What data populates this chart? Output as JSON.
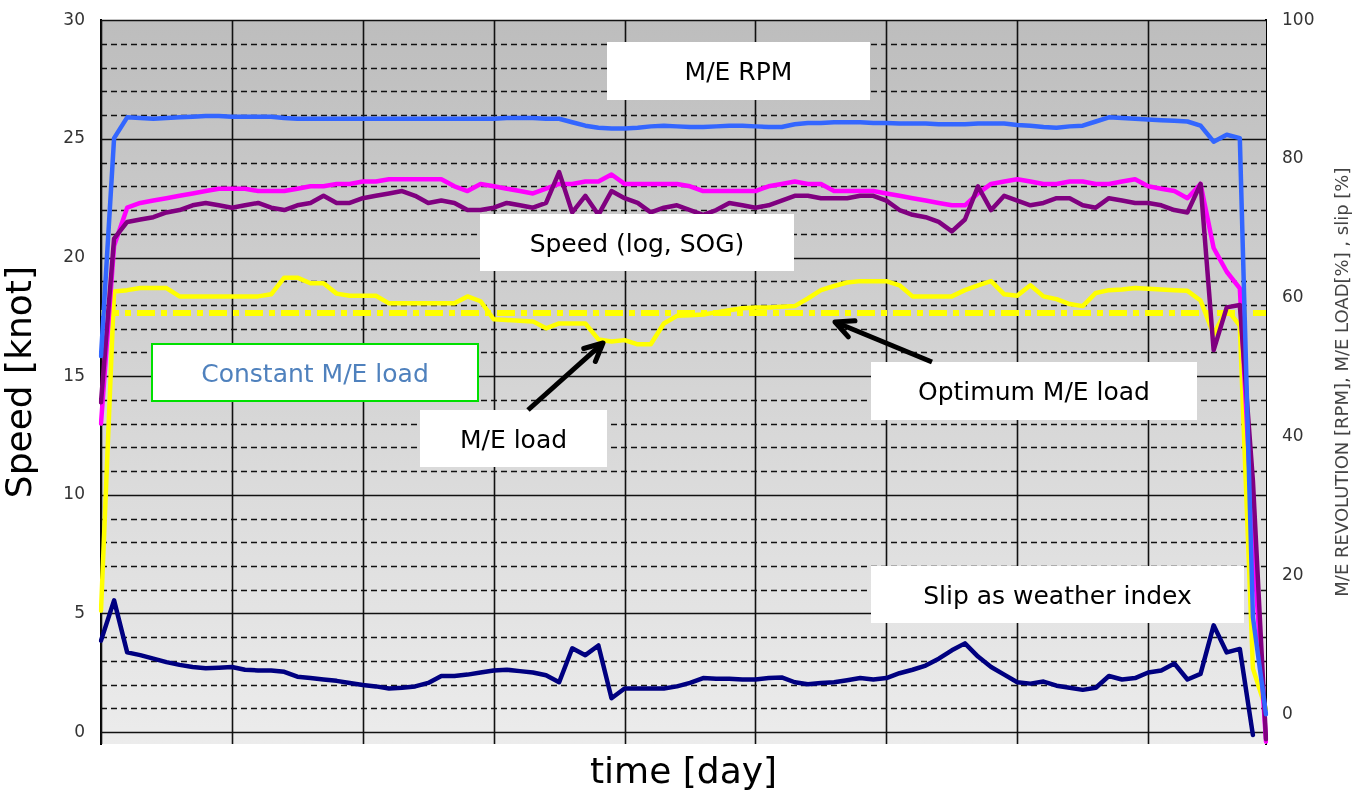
{
  "chart_data": {
    "type": "line",
    "xlabel": "time [day]",
    "ylabel": "Speed [knot]",
    "y2label": "M/E REVOLUTION [RPM], M/E LOAD[%] , slip [%]",
    "categories": [
      null,
      null,
      null,
      null,
      null,
      null,
      null,
      null,
      null,
      null,
      null,
      null,
      null,
      null,
      null,
      null,
      null,
      null,
      null,
      null,
      null,
      null,
      null,
      null,
      null,
      null,
      null,
      null,
      null,
      null,
      null,
      null,
      null,
      null,
      null,
      null,
      null,
      null,
      null,
      null,
      null,
      null,
      null,
      null,
      null,
      null,
      null,
      null,
      null,
      null,
      null,
      null,
      null,
      null,
      null,
      null,
      null,
      null,
      null,
      null,
      null,
      null,
      null,
      null,
      null,
      null,
      null,
      null,
      null,
      null,
      null,
      null,
      null,
      null,
      null,
      null,
      null,
      null,
      null,
      null,
      null,
      null,
      null,
      null,
      null,
      null,
      null,
      null,
      null,
      null
    ],
    "ylim": [
      -0.5,
      30
    ],
    "yticks": [
      0,
      {
        "value": 1,
        "label": null
      },
      {
        "value": 2,
        "label": null
      },
      {
        "value": 3,
        "label": null
      },
      {
        "value": 4,
        "label": null
      },
      5,
      {
        "value": 6,
        "label": null
      },
      {
        "value": 7,
        "label": null
      },
      {
        "value": 8,
        "label": null
      },
      {
        "value": 9,
        "label": null
      },
      10,
      {
        "value": 11,
        "label": null
      },
      {
        "value": 12,
        "label": null
      },
      {
        "value": 13,
        "label": null
      },
      {
        "value": 14,
        "label": null
      },
      15,
      {
        "value": 16,
        "label": null
      },
      {
        "value": 17,
        "label": null
      },
      {
        "value": 18,
        "label": null
      },
      {
        "value": 19,
        "label": null
      },
      20,
      {
        "value": 21,
        "label": null
      },
      {
        "value": 22,
        "label": null
      },
      {
        "value": 23,
        "label": null
      },
      {
        "value": 24,
        "label": null
      },
      25,
      {
        "value": 26,
        "label": null
      },
      {
        "value": 27,
        "label": null
      },
      {
        "value": 28,
        "label": null
      },
      {
        "value": 29,
        "label": null
      },
      30
    ],
    "y2lim": [
      -4.3,
      100
    ],
    "y2ticks": [
      0,
      20,
      40,
      60,
      80,
      100
    ],
    "grid": true,
    "legend": false,
    "series": [
      {
        "color": "#000080",
        "axis": "y2",
        "values": [
          10.6,
          16.4,
          8.9,
          8.5,
          8.0,
          7.5,
          7.1,
          6.8,
          6.6,
          6.7,
          6.8,
          6.4,
          6.3,
          6.3,
          6.1,
          5.4,
          5.2,
          5.0,
          4.8,
          4.5,
          4.2,
          4.0,
          3.7,
          3.8,
          4.0,
          4.5,
          5.5,
          5.5,
          5.7,
          6.0,
          6.3,
          6.4,
          6.2,
          6.0,
          5.6,
          4.6,
          9.5,
          8.5,
          9.9,
          2.3,
          3.7,
          3.7,
          3.7,
          3.7,
          4.0,
          4.5,
          5.2,
          5.1,
          5.1,
          5.0,
          5.0,
          5.2,
          5.3,
          4.6,
          4.3,
          4.5,
          4.6,
          4.9,
          5.2,
          5.0,
          5.2,
          5.9,
          6.4,
          7.0,
          8.0,
          9.2,
          10.2,
          8.3,
          6.8,
          5.7,
          4.6,
          4.4,
          4.7,
          4.1,
          3.8,
          3.5,
          3.8,
          5.5,
          5.0,
          5.2,
          6.0,
          6.3,
          7.3,
          5.0,
          5.8,
          12.8,
          8.9,
          9.4,
          -3.0,
          null
        ]
      },
      {
        "color": "#ffff00",
        "axis": "y2",
        "values": [
          14.9,
          60.9,
          61.1,
          61.4,
          61.4,
          61.4,
          60.2,
          60.2,
          60.2,
          60.2,
          60.2,
          60.2,
          60.2,
          60.5,
          62.9,
          62.9,
          62.1,
          62.1,
          60.6,
          60.3,
          60.3,
          60.3,
          59.2,
          59.2,
          59.2,
          59.2,
          59.2,
          59.2,
          60.2,
          59.5,
          56.9,
          56.8,
          56.7,
          56.6,
          55.6,
          56.3,
          56.3,
          56.3,
          54.0,
          53.7,
          53.9,
          53.3,
          53.3,
          56.3,
          57.4,
          57.5,
          57.6,
          57.9,
          58.2,
          58.5,
          58.6,
          58.6,
          58.7,
          58.8,
          59.9,
          61.1,
          61.7,
          62.2,
          62.4,
          62.4,
          62.4,
          61.8,
          60.2,
          60.2,
          60.2,
          60.2,
          61.1,
          61.8,
          62.4,
          60.5,
          60.3,
          61.8,
          60.2,
          59.8,
          59.1,
          58.8,
          60.7,
          61.1,
          61.2,
          61.4,
          61.3,
          61.2,
          61.1,
          61.0,
          59.6,
          54.7,
          58.4,
          56.0,
          6.6,
          0.7
        ]
      },
      {
        "color": "#ff00ff",
        "values": [
          13.0,
          20.5,
          22.1,
          22.3,
          22.4,
          22.5,
          22.6,
          22.7,
          22.8,
          22.9,
          22.9,
          22.9,
          22.8,
          22.8,
          22.8,
          22.9,
          23.0,
          23.0,
          23.1,
          23.1,
          23.2,
          23.2,
          23.3,
          23.3,
          23.3,
          23.3,
          23.3,
          23.0,
          22.8,
          23.1,
          23.0,
          22.9,
          22.8,
          22.7,
          22.9,
          23.1,
          23.1,
          23.2,
          23.2,
          23.5,
          23.1,
          23.1,
          23.1,
          23.1,
          23.1,
          23.0,
          22.8,
          22.8,
          22.8,
          22.8,
          22.8,
          23.0,
          23.1,
          23.2,
          23.1,
          23.1,
          22.8,
          22.8,
          22.8,
          22.8,
          22.7,
          22.6,
          22.5,
          22.4,
          22.3,
          22.2,
          22.2,
          22.7,
          23.1,
          23.2,
          23.3,
          23.2,
          23.1,
          23.1,
          23.2,
          23.2,
          23.1,
          23.1,
          23.2,
          23.3,
          23.0,
          22.9,
          22.8,
          22.5,
          23.1,
          20.4,
          19.4,
          18.7,
          8.2,
          -0.4
        ]
      },
      {
        "color": "#800080",
        "values": [
          13.9,
          20.8,
          21.5,
          21.6,
          21.7,
          21.9,
          22.0,
          22.2,
          22.3,
          22.2,
          22.1,
          22.2,
          22.3,
          22.1,
          22.0,
          22.2,
          22.3,
          22.6,
          22.3,
          22.3,
          22.5,
          22.6,
          22.7,
          22.8,
          22.6,
          22.3,
          22.4,
          22.3,
          22.0,
          22.0,
          22.1,
          22.3,
          22.2,
          22.1,
          22.3,
          23.6,
          21.9,
          22.6,
          21.8,
          22.8,
          22.5,
          22.3,
          21.9,
          22.1,
          22.2,
          22.0,
          21.8,
          22.0,
          22.3,
          22.2,
          22.1,
          22.2,
          22.4,
          22.6,
          22.6,
          22.5,
          22.5,
          22.5,
          22.6,
          22.6,
          22.4,
          22.0,
          21.8,
          21.7,
          21.5,
          21.1,
          21.6,
          23.0,
          22.0,
          22.6,
          22.4,
          22.2,
          22.3,
          22.5,
          22.5,
          22.2,
          22.1,
          22.5,
          22.4,
          22.3,
          22.3,
          22.2,
          22.0,
          21.9,
          23.1,
          16.1,
          17.9,
          18.0,
          10.6,
          -0.3
        ]
      },
      {
        "color": "#3366ff",
        "axis": "y2",
        "values": [
          51.6,
          83.0,
          86.0,
          85.9,
          85.8,
          85.9,
          86.0,
          86.1,
          86.2,
          86.2,
          86.1,
          86.1,
          86.1,
          86.1,
          85.9,
          85.8,
          85.8,
          85.8,
          85.8,
          85.8,
          85.8,
          85.8,
          85.8,
          85.8,
          85.8,
          85.8,
          85.8,
          85.8,
          85.8,
          85.8,
          85.8,
          85.9,
          85.9,
          85.9,
          85.8,
          85.8,
          85.3,
          84.8,
          84.5,
          84.4,
          84.4,
          84.5,
          84.7,
          84.8,
          84.7,
          84.6,
          84.6,
          84.7,
          84.8,
          84.8,
          84.7,
          84.6,
          84.6,
          85.0,
          85.2,
          85.2,
          85.3,
          85.3,
          85.3,
          85.2,
          85.2,
          85.1,
          85.1,
          85.1,
          85.0,
          85.0,
          85.0,
          85.1,
          85.1,
          85.1,
          84.9,
          84.8,
          84.6,
          84.5,
          84.7,
          84.8,
          85.4,
          86.0,
          85.9,
          85.8,
          85.7,
          85.6,
          85.5,
          85.4,
          84.8,
          82.5,
          83.5,
          83.0,
          14.0,
          0
        ]
      }
    ],
    "ref_lines": [
      {
        "axis": "y2",
        "value": 57.8,
        "color": "#ffff00",
        "line_style": "dashed"
      }
    ],
    "annotations": [
      "M/E RPM",
      "Speed (log, SOG)",
      "Constant M/E load",
      "M/E load",
      "Optimum M/E load",
      "Slip as weather index"
    ]
  }
}
